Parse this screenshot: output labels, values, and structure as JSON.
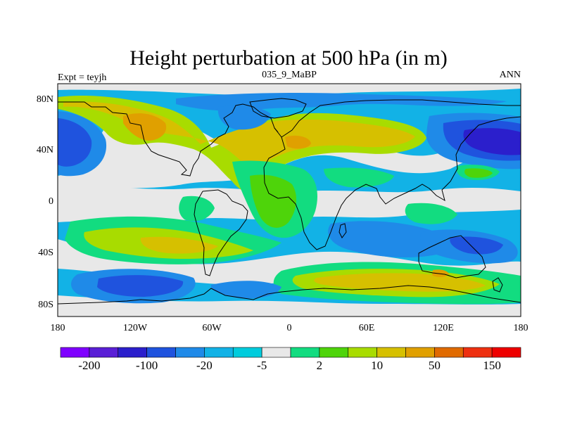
{
  "title": "Height perturbation at 500 hPa (in m)",
  "left_label": "Expt = teyjh",
  "center_label": "035_9_MaBP",
  "right_label": "ANN",
  "lat_ticks": [
    "80N",
    "40N",
    "0",
    "40S",
    "80S"
  ],
  "lon_ticks": [
    "180",
    "120W",
    "60W",
    "0",
    "60E",
    "120E",
    "180"
  ],
  "colorbar": {
    "colors": [
      "#7f00ff",
      "#5a1fd6",
      "#2b1fcc",
      "#1f53de",
      "#1f8ae8",
      "#12b2e6",
      "#00ccdd",
      "#e8e8e8",
      "#12dc80",
      "#4ed40a",
      "#a8dc00",
      "#d6c000",
      "#e0a000",
      "#e06a00",
      "#ee3010",
      "#ee0000"
    ],
    "labels": [
      "-200",
      "-100",
      "-20",
      "-5",
      "2",
      "10",
      "50",
      "150"
    ]
  },
  "palette": {
    "bg": "#12b2e6",
    "neutral": "#e8e8e8",
    "teal": "#12dc80",
    "green": "#4ed40a",
    "ygreen": "#a8dc00",
    "yellow": "#d6c000",
    "orange": "#e0a000",
    "sky": "#1f8ae8",
    "blue": "#1f53de",
    "dblue": "#2b1fcc",
    "coast": "#000000"
  }
}
